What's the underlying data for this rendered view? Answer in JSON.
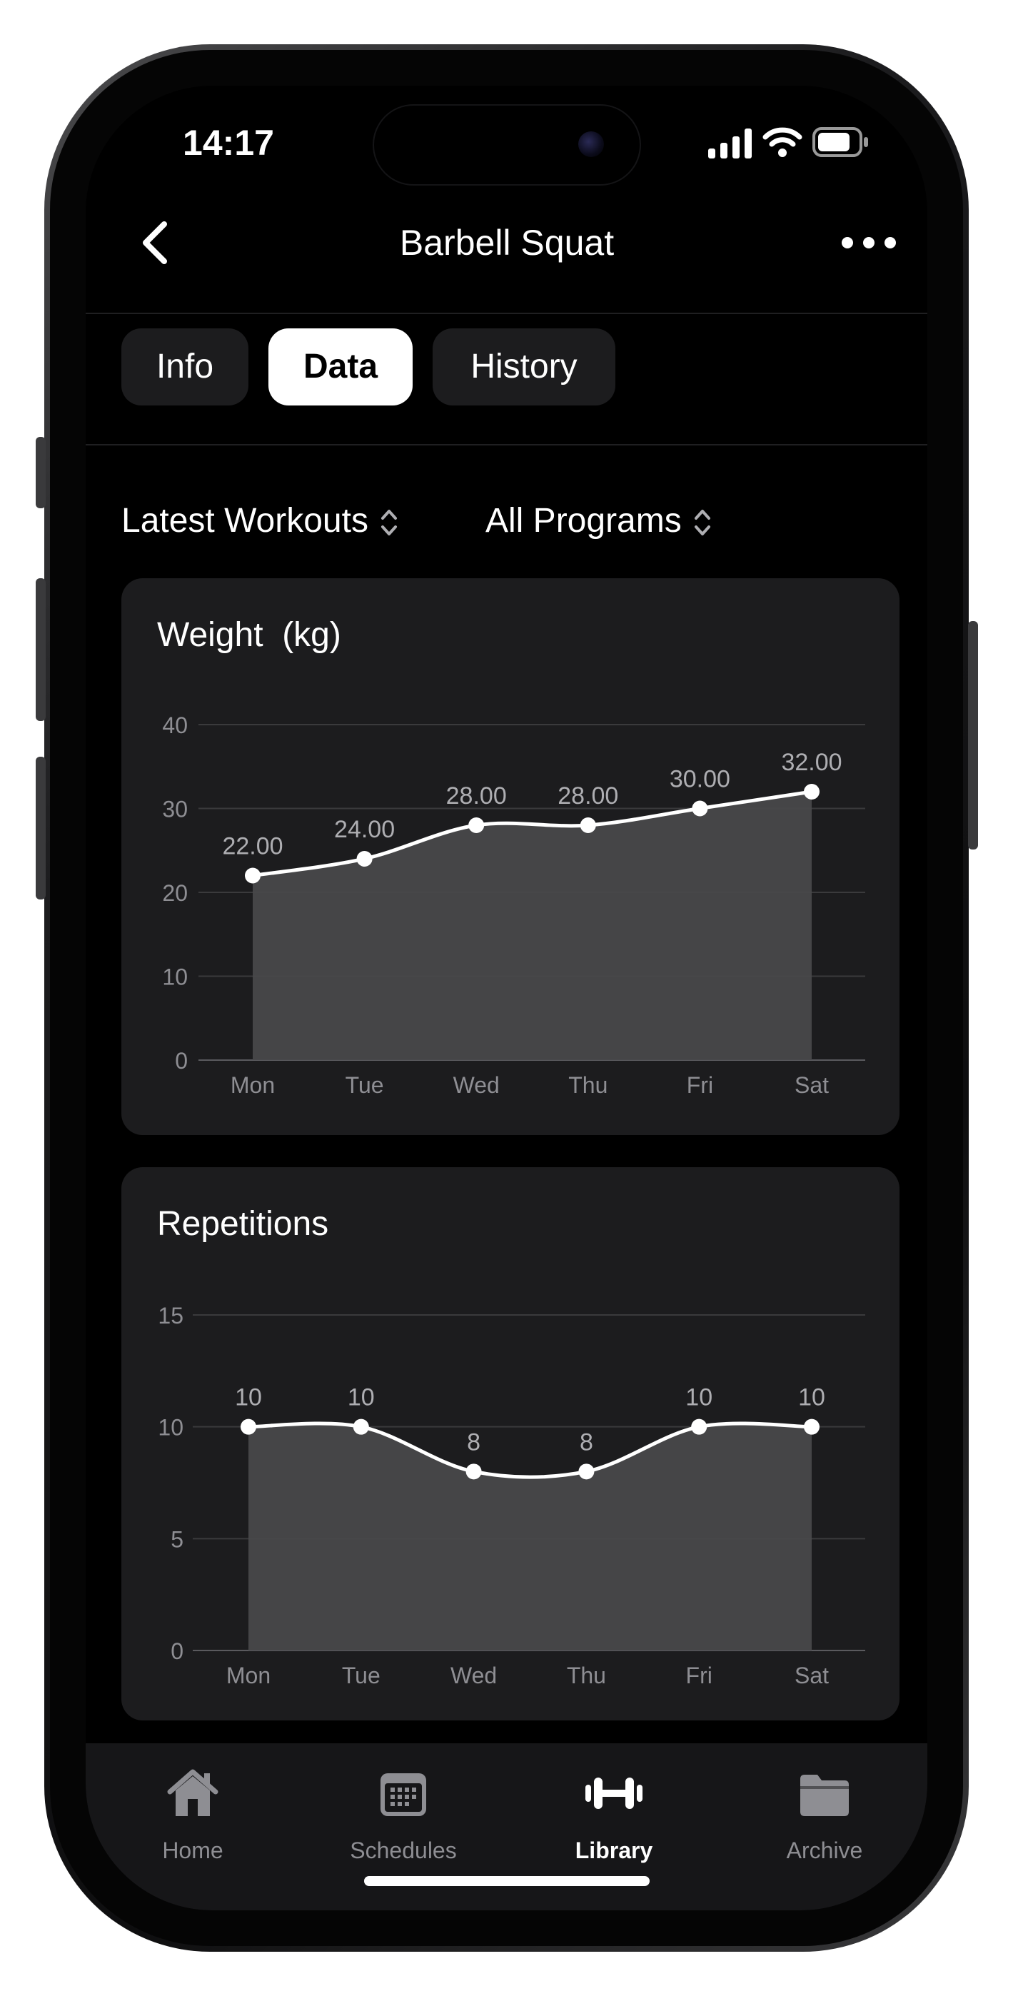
{
  "status_bar": {
    "time": "14:17"
  },
  "nav": {
    "title": "Barbell Squat"
  },
  "tabs": [
    {
      "label": "Info",
      "active": false
    },
    {
      "label": "Data",
      "active": true
    },
    {
      "label": "History",
      "active": false
    }
  ],
  "filters": {
    "range": "Latest Workouts",
    "program": "All Programs"
  },
  "charts": {
    "weight_title": "Weight  (kg)",
    "reps_title": "Repetitions"
  },
  "chart_data": [
    {
      "type": "area",
      "title": "Weight  (kg)",
      "categories": [
        "Mon",
        "Tue",
        "Wed",
        "Thu",
        "Fri",
        "Sat"
      ],
      "values": [
        22,
        24,
        28,
        28,
        30,
        32
      ],
      "data_labels": [
        "22.00",
        "24.00",
        "28.00",
        "28.00",
        "30.00",
        "32.00"
      ],
      "yticks": [
        0,
        10,
        20,
        30,
        40
      ],
      "ylim": [
        0,
        40
      ],
      "grid": true,
      "line_color": "#ffffff",
      "fill_color": "#48484a"
    },
    {
      "type": "area",
      "title": "Repetitions",
      "categories": [
        "Mon",
        "Tue",
        "Wed",
        "Thu",
        "Fri",
        "Sat"
      ],
      "values": [
        10,
        10,
        8,
        8,
        10,
        10
      ],
      "data_labels": [
        "10",
        "10",
        "8",
        "8",
        "10",
        "10"
      ],
      "yticks": [
        0,
        5,
        10,
        15
      ],
      "ylim": [
        0,
        15
      ],
      "grid": true,
      "line_color": "#ffffff",
      "fill_color": "#48484a"
    }
  ],
  "tab_bar": {
    "items": [
      {
        "label": "Home",
        "icon": "house-icon",
        "active": false
      },
      {
        "label": "Schedules",
        "icon": "calendar-icon",
        "active": false
      },
      {
        "label": "Library",
        "icon": "dumbbell-icon",
        "active": true
      },
      {
        "label": "Archive",
        "icon": "folder-icon",
        "active": false
      }
    ]
  },
  "colors": {
    "background": "#000000",
    "card": "#1c1c1e",
    "active_tab": "#ffffff",
    "inactive_text": "#8e8e93"
  }
}
